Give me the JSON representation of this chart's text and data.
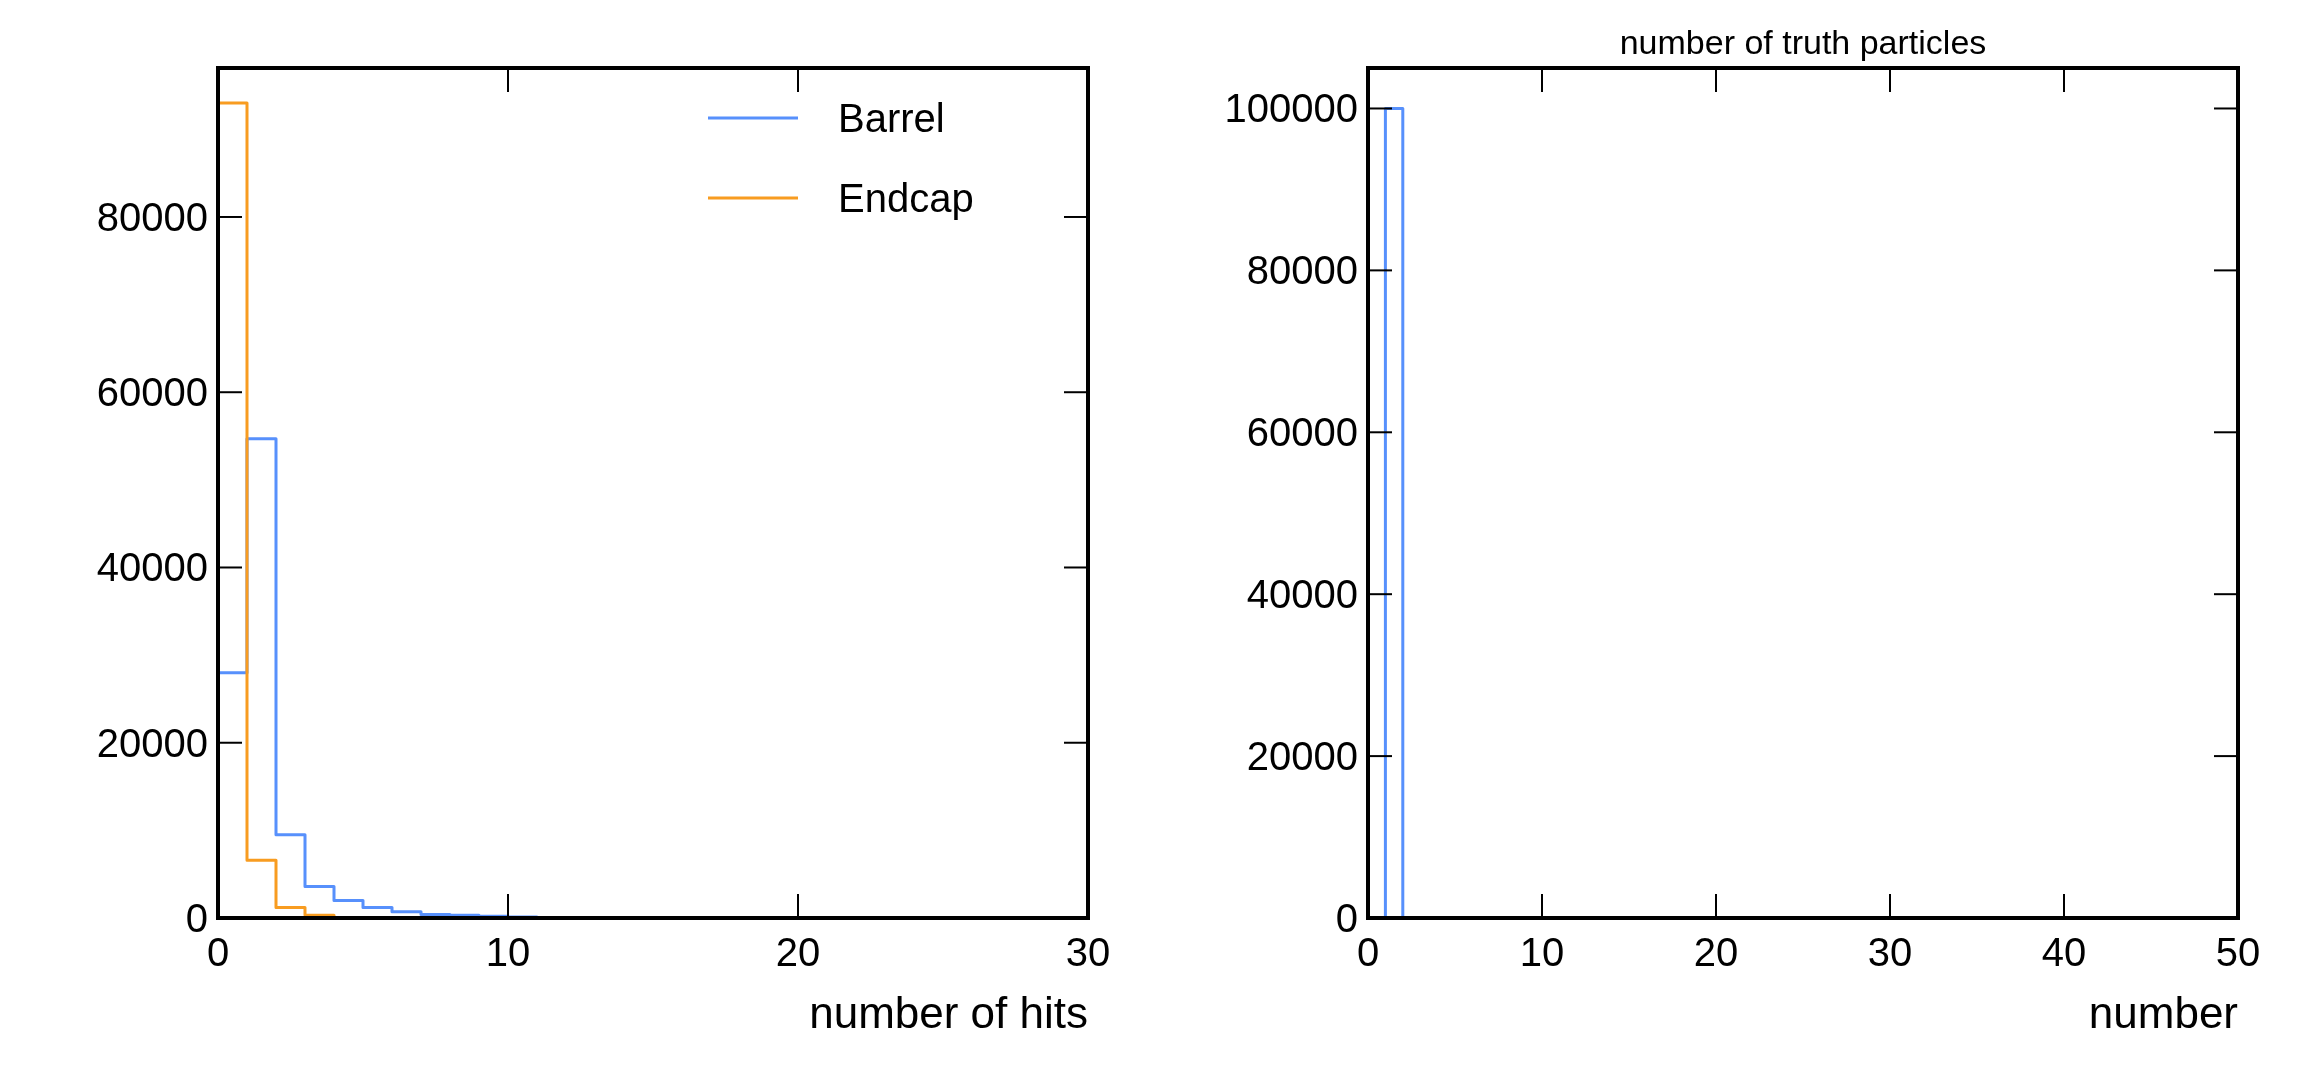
{
  "chart_data": [
    {
      "type": "histogram",
      "xlabel": "number of hits",
      "bins": [
        0,
        1,
        2,
        3,
        4,
        5,
        6,
        7,
        8,
        9,
        10,
        11
      ],
      "series": [
        {
          "name": "Barrel",
          "color": "#5790fc",
          "values": [
            28000,
            54700,
            9500,
            3600,
            2000,
            1200,
            700,
            400,
            300,
            200,
            100
          ]
        },
        {
          "name": "Endcap",
          "color": "#f89c20",
          "values": [
            93000,
            6600,
            1200,
            300,
            0,
            0,
            0,
            0,
            0,
            0,
            0
          ]
        }
      ],
      "xlim": [
        0,
        30
      ],
      "xticks": [
        0,
        10,
        20,
        30
      ],
      "ylim": [
        0,
        97000
      ],
      "yticks": [
        0,
        20000,
        40000,
        60000,
        80000
      ],
      "legend": "top right",
      "grid": false
    },
    {
      "type": "histogram",
      "title": "number of truth particles",
      "xlabel": "number",
      "bins": [
        1,
        2
      ],
      "series": [
        {
          "color": "#5790fc",
          "values": [
            100000
          ]
        }
      ],
      "xlim": [
        0,
        50
      ],
      "xticks": [
        0,
        10,
        20,
        30,
        40,
        50
      ],
      "ylim": [
        0,
        105000
      ],
      "yticks": [
        0,
        20000,
        40000,
        60000,
        80000,
        100000
      ],
      "grid": false
    }
  ]
}
